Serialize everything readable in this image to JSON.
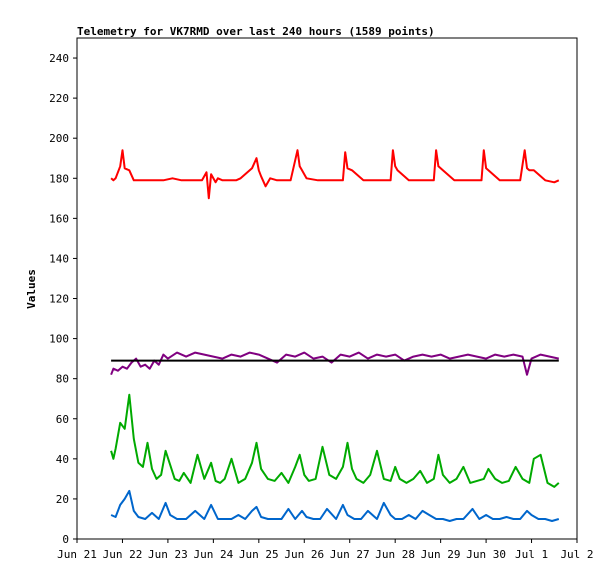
{
  "chart_data": {
    "type": "line",
    "title": "Telemetry for VK7RMD over last 240 hours (1589 points)",
    "xlabel": "",
    "ylabel": "Values",
    "ylim": [
      0,
      250
    ],
    "y_ticks": [
      0,
      20,
      40,
      60,
      80,
      100,
      120,
      140,
      160,
      180,
      200,
      220,
      240
    ],
    "x_ticks": [
      "Jun 21",
      "Jun 22",
      "Jun 23",
      "Jun 24",
      "Jun 25",
      "Jun 26",
      "Jun 27",
      "Jun 28",
      "Jun 29",
      "Jun 30",
      "Jul 1",
      "Jul 2"
    ],
    "xlim": [
      0,
      11
    ],
    "grid": false,
    "legend": "none",
    "series": [
      {
        "color": "#ff0000",
        "x": [
          0.75,
          0.8,
          0.85,
          0.95,
          1.0,
          1.05,
          1.15,
          1.25,
          1.35,
          1.5,
          1.7,
          1.9,
          2.1,
          2.3,
          2.45,
          2.6,
          2.75,
          2.85,
          2.9,
          2.95,
          3.05,
          3.1,
          3.2,
          3.35,
          3.5,
          3.6,
          3.85,
          3.95,
          4.0,
          4.05,
          4.15,
          4.25,
          4.4,
          4.55,
          4.7,
          4.85,
          4.9,
          4.95,
          5.05,
          5.3,
          5.5,
          5.7,
          5.85,
          5.9,
          5.95,
          6.05,
          6.3,
          6.5,
          6.7,
          6.9,
          6.95,
          7.0,
          7.05,
          7.3,
          7.5,
          7.7,
          7.85,
          7.9,
          7.95,
          8.05,
          8.3,
          8.5,
          8.7,
          8.9,
          8.95,
          9.0,
          9.05,
          9.3,
          9.5,
          9.75,
          9.85,
          9.9,
          9.95,
          10.05,
          10.3,
          10.5,
          10.6
        ],
        "values": [
          180,
          179,
          180,
          186,
          194,
          185,
          184,
          179,
          179,
          179,
          179,
          179,
          180,
          179,
          179,
          179,
          179,
          183,
          170,
          182,
          178,
          180,
          179,
          179,
          179,
          180,
          185,
          190,
          184,
          181,
          176,
          180,
          179,
          179,
          179,
          194,
          186,
          184,
          180,
          179,
          179,
          179,
          179,
          193,
          185,
          184,
          179,
          179,
          179,
          179,
          194,
          186,
          184,
          179,
          179,
          179,
          179,
          194,
          186,
          184,
          179,
          179,
          179,
          179,
          194,
          185,
          184,
          179,
          179,
          179,
          194,
          185,
          184,
          184,
          179,
          178,
          179
        ]
      },
      {
        "color": "#800080",
        "x": [
          0.75,
          0.8,
          0.9,
          1.0,
          1.1,
          1.2,
          1.3,
          1.4,
          1.5,
          1.6,
          1.7,
          1.8,
          1.9,
          2.0,
          2.2,
          2.4,
          2.6,
          2.8,
          3.0,
          3.2,
          3.4,
          3.6,
          3.8,
          4.0,
          4.2,
          4.4,
          4.6,
          4.8,
          5.0,
          5.2,
          5.4,
          5.6,
          5.8,
          6.0,
          6.2,
          6.4,
          6.6,
          6.8,
          7.0,
          7.2,
          7.4,
          7.6,
          7.8,
          8.0,
          8.2,
          8.4,
          8.6,
          8.8,
          9.0,
          9.2,
          9.4,
          9.6,
          9.8,
          9.9,
          10.0,
          10.2,
          10.4,
          10.6
        ],
        "values": [
          82,
          85,
          84,
          86,
          85,
          88,
          90,
          86,
          87,
          85,
          89,
          87,
          92,
          90,
          93,
          91,
          93,
          92,
          91,
          90,
          92,
          91,
          93,
          92,
          90,
          88,
          92,
          91,
          93,
          90,
          91,
          88,
          92,
          91,
          93,
          90,
          92,
          91,
          92,
          89,
          91,
          92,
          91,
          92,
          90,
          91,
          92,
          91,
          90,
          92,
          91,
          92,
          91,
          82,
          90,
          92,
          91,
          90
        ]
      },
      {
        "color": "#00aa00",
        "x": [
          0.75,
          0.8,
          0.85,
          0.95,
          1.05,
          1.15,
          1.25,
          1.35,
          1.45,
          1.55,
          1.65,
          1.75,
          1.85,
          1.95,
          2.05,
          2.15,
          2.25,
          2.35,
          2.5,
          2.65,
          2.8,
          2.95,
          3.05,
          3.15,
          3.25,
          3.4,
          3.55,
          3.7,
          3.85,
          3.95,
          4.05,
          4.2,
          4.35,
          4.5,
          4.65,
          4.8,
          4.9,
          5.0,
          5.1,
          5.25,
          5.4,
          5.55,
          5.7,
          5.85,
          5.95,
          6.05,
          6.15,
          6.3,
          6.45,
          6.6,
          6.75,
          6.9,
          7.0,
          7.1,
          7.25,
          7.4,
          7.55,
          7.7,
          7.85,
          7.95,
          8.05,
          8.2,
          8.35,
          8.5,
          8.65,
          8.8,
          8.95,
          9.05,
          9.2,
          9.35,
          9.5,
          9.65,
          9.8,
          9.95,
          10.05,
          10.2,
          10.35,
          10.5,
          10.6
        ],
        "values": [
          44,
          40,
          45,
          58,
          55,
          72,
          50,
          38,
          36,
          48,
          35,
          30,
          32,
          44,
          37,
          30,
          29,
          33,
          28,
          42,
          30,
          38,
          29,
          28,
          30,
          40,
          28,
          30,
          38,
          48,
          35,
          30,
          29,
          33,
          28,
          36,
          42,
          32,
          29,
          30,
          46,
          32,
          30,
          36,
          48,
          35,
          30,
          28,
          32,
          44,
          30,
          29,
          36,
          30,
          28,
          30,
          34,
          28,
          30,
          42,
          32,
          28,
          30,
          36,
          28,
          29,
          30,
          35,
          30,
          28,
          29,
          36,
          30,
          28,
          40,
          42,
          28,
          26,
          28
        ]
      },
      {
        "color": "#0066cc",
        "x": [
          0.75,
          0.85,
          0.95,
          1.05,
          1.15,
          1.25,
          1.35,
          1.5,
          1.65,
          1.8,
          1.95,
          2.05,
          2.2,
          2.4,
          2.6,
          2.8,
          2.95,
          3.1,
          3.25,
          3.4,
          3.55,
          3.7,
          3.85,
          3.95,
          4.05,
          4.2,
          4.35,
          4.5,
          4.65,
          4.8,
          4.95,
          5.05,
          5.2,
          5.35,
          5.5,
          5.7,
          5.85,
          5.95,
          6.1,
          6.25,
          6.4,
          6.6,
          6.75,
          6.9,
          7.0,
          7.15,
          7.3,
          7.45,
          7.6,
          7.75,
          7.9,
          8.05,
          8.2,
          8.35,
          8.5,
          8.7,
          8.85,
          9.0,
          9.15,
          9.3,
          9.45,
          9.6,
          9.75,
          9.9,
          10.0,
          10.15,
          10.3,
          10.45,
          10.6
        ],
        "values": [
          12,
          11,
          17,
          20,
          24,
          14,
          11,
          10,
          13,
          10,
          18,
          12,
          10,
          10,
          14,
          10,
          17,
          10,
          10,
          10,
          12,
          10,
          14,
          16,
          11,
          10,
          10,
          10,
          15,
          10,
          14,
          11,
          10,
          10,
          15,
          10,
          17,
          12,
          10,
          10,
          14,
          10,
          18,
          12,
          10,
          10,
          12,
          10,
          14,
          12,
          10,
          10,
          9,
          10,
          10,
          15,
          10,
          12,
          10,
          10,
          11,
          10,
          10,
          14,
          12,
          10,
          10,
          9,
          10
        ]
      },
      {
        "color": "#000000",
        "x": [
          0.75,
          10.6
        ],
        "values": [
          89,
          89
        ]
      }
    ]
  }
}
